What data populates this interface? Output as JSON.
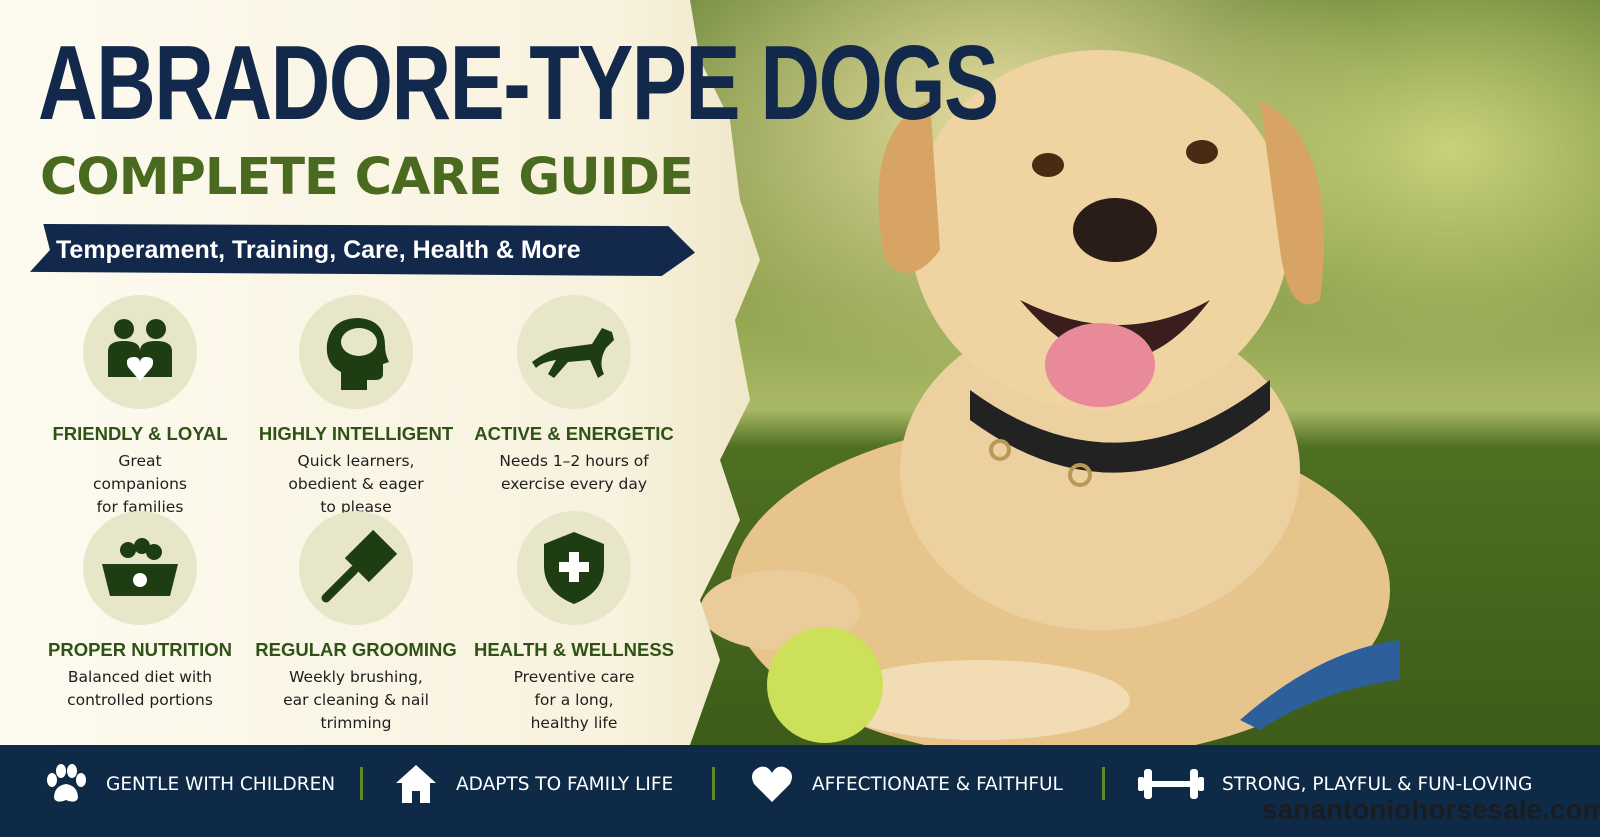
{
  "header": {
    "title": "ABRADORE-TYPE DOGS",
    "subtitle": "COMPLETE CARE GUIDE",
    "banner": "Temperament, Training, Care, Health & More"
  },
  "features": [
    {
      "icon": "family-heart-icon",
      "title": "FRIENDLY & LOYAL",
      "desc": "Great companions for families"
    },
    {
      "icon": "brain-head-icon",
      "title": "HIGHLY INTELLIGENT",
      "desc": "Quick learners, obedient & eager to please"
    },
    {
      "icon": "running-dog-icon",
      "title": "ACTIVE & ENERGETIC",
      "desc": "Needs 1–2 hours of exercise every day"
    },
    {
      "icon": "food-bowl-icon",
      "title": "PROPER NUTRITION",
      "desc": "Balanced diet with controlled portions"
    },
    {
      "icon": "brush-icon",
      "title": "REGULAR GROOMING",
      "desc": "Weekly brushing, ear cleaning & nail trimming"
    },
    {
      "icon": "shield-cross-icon",
      "title": "HEALTH & WELLNESS",
      "desc": "Preventive care for a long, healthy life"
    }
  ],
  "bottom_bar": [
    {
      "icon": "paw-icon",
      "label": "GENTLE WITH CHILDREN"
    },
    {
      "icon": "house-icon",
      "label": "ADAPTS TO FAMILY LIFE"
    },
    {
      "icon": "heart-icon",
      "label": "AFFECTIONATE & FAITHFUL"
    },
    {
      "icon": "dumbbell-icon",
      "label": "STRONG, PLAYFUL & FUN-LOVING"
    }
  ],
  "watermark": "sanantoniohorsesale.com",
  "colors": {
    "navy": "#13294b",
    "green": "#4a6b1f",
    "cream": "#f8f2de"
  }
}
